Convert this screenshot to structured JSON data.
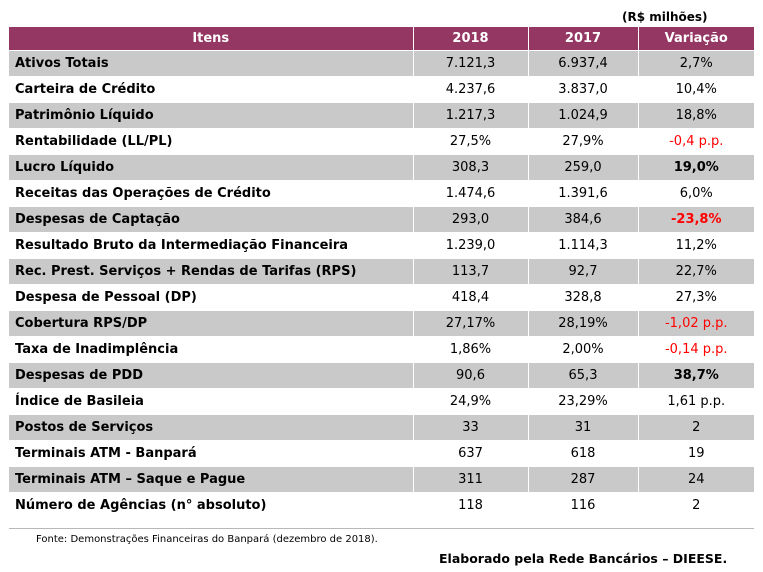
{
  "unit_note": "(R$ milhões)",
  "headers": {
    "item": "Itens",
    "y2018": "2018",
    "y2017": "2017",
    "var": "Variação"
  },
  "rows": [
    {
      "item": "Ativos Totais",
      "v2018": "7.121,3",
      "v2017": "6.937,4",
      "var": "2,7%"
    },
    {
      "item": "Carteira de Crédito",
      "v2018": "4.237,6",
      "v2017": "3.837,0",
      "var": "10,4%"
    },
    {
      "item": "Patrimônio Líquido",
      "v2018": "1.217,3",
      "v2017": "1.024,9",
      "var": "18,8%"
    },
    {
      "item": "Rentabilidade (LL/PL)",
      "v2018": "27,5%",
      "v2017": "27,9%",
      "var": "-0,4 p.p."
    },
    {
      "item": "Lucro Líquido",
      "v2018": "308,3",
      "v2017": "259,0",
      "var": "19,0%"
    },
    {
      "item": "Receitas das Operações de Crédito",
      "v2018": "1.474,6",
      "v2017": "1.391,6",
      "var": "6,0%"
    },
    {
      "item": "Despesas de Captação",
      "v2018": "293,0",
      "v2017": "384,6",
      "var": "-23,8%"
    },
    {
      "item": "Resultado Bruto da Intermediação Financeira",
      "v2018": "1.239,0",
      "v2017": "1.114,3",
      "var": "11,2%"
    },
    {
      "item": "Rec. Prest. Serviços + Rendas de Tarifas (RPS)",
      "v2018": "113,7",
      "v2017": "92,7",
      "var": "22,7%"
    },
    {
      "item": "Despesa de Pessoal (DP)",
      "v2018": "418,4",
      "v2017": "328,8",
      "var": "27,3%"
    },
    {
      "item": "Cobertura RPS/DP",
      "v2018": "27,17%",
      "v2017": "28,19%",
      "var": "-1,02 p.p."
    },
    {
      "item": "Taxa de Inadimplência",
      "v2018": "1,86%",
      "v2017": "2,00%",
      "var": "-0,14 p.p."
    },
    {
      "item": "Despesas de PDD",
      "v2018": "90,6",
      "v2017": "65,3",
      "var": "38,7%"
    },
    {
      "item": "Índice de Basileia",
      "v2018": "24,9%",
      "v2017": "23,29%",
      "var": "1,61 p.p."
    },
    {
      "item": "Postos de Serviços",
      "v2018": "33",
      "v2017": "31",
      "var": "2"
    },
    {
      "item": "Terminais ATM - Banpará",
      "v2018": "637",
      "v2017": "618",
      "var": "19"
    },
    {
      "item": "Terminais ATM – Saque e Pague",
      "v2018": "311",
      "v2017": "287",
      "var": "24"
    },
    {
      "item": "Número de Agências (n° absoluto)",
      "v2018": "118",
      "v2017": "116",
      "var": "2"
    }
  ],
  "source": "Fonte: Demonstrações Financeiras do Banpará (dezembro de 2018).",
  "credit": "Elaborado pela Rede Bancários – DIEESE.",
  "colors": {
    "header_bg": "#943763",
    "shaded_row": "#c9c9c9",
    "negative": "#ff0000"
  }
}
